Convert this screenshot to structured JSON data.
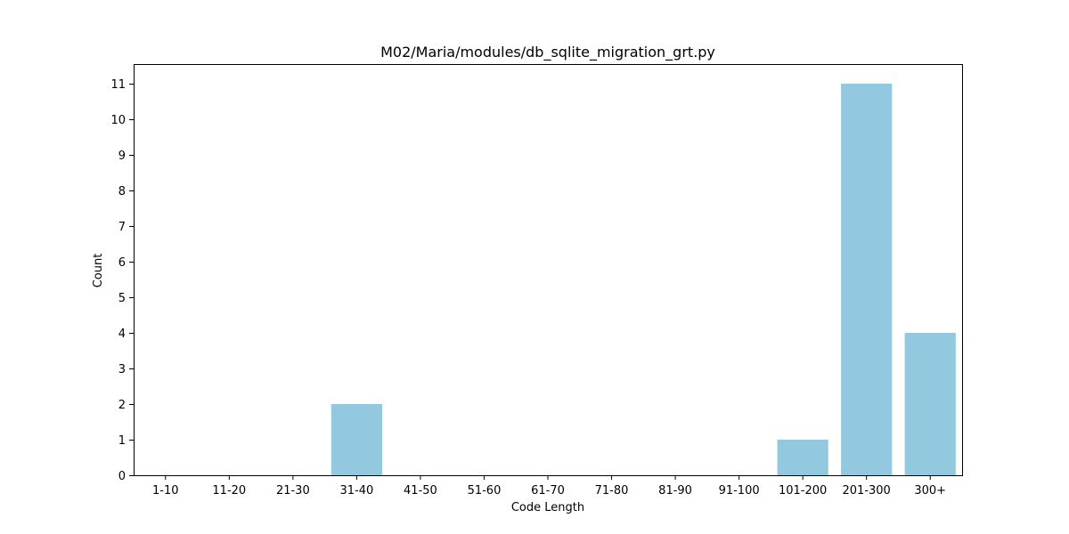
{
  "chart_data": {
    "type": "bar",
    "title": "M02/Maria/modules/db_sqlite_migration_grt.py",
    "xlabel": "Code Length",
    "ylabel": "Count",
    "categories": [
      "1-10",
      "11-20",
      "21-30",
      "31-40",
      "41-50",
      "51-60",
      "61-70",
      "71-80",
      "81-90",
      "91-100",
      "101-200",
      "201-300",
      "300+"
    ],
    "values": [
      0,
      0,
      0,
      2,
      0,
      0,
      0,
      0,
      0,
      0,
      1,
      11,
      4
    ],
    "yticks": [
      "0",
      "1",
      "2",
      "3",
      "4",
      "5",
      "6",
      "7",
      "8",
      "9",
      "10",
      "11"
    ],
    "ylim": [
      0,
      11.55
    ],
    "grid": false,
    "bar_color": "#92c9df"
  }
}
